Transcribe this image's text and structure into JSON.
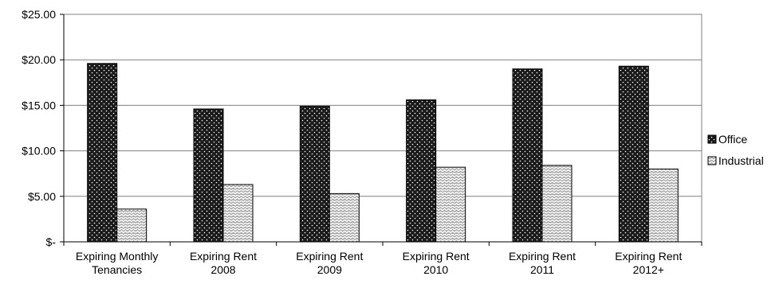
{
  "chart_data": {
    "type": "bar",
    "categories": [
      [
        "Expiring Monthly",
        "Tenancies"
      ],
      [
        "Expiring Rent",
        "2008"
      ],
      [
        "Expiring Rent",
        "2009"
      ],
      [
        "Expiring Rent",
        "2010"
      ],
      [
        "Expiring Rent",
        "2011"
      ],
      [
        "Expiring Rent",
        "2012+"
      ]
    ],
    "series": [
      {
        "name": "Office",
        "values": [
          19.6,
          14.6,
          14.9,
          15.6,
          19.0,
          19.3
        ],
        "pattern": "dotted-black"
      },
      {
        "name": "Industrial",
        "values": [
          3.6,
          6.3,
          5.3,
          8.2,
          8.4,
          8.0
        ],
        "pattern": "zigzag-gray"
      }
    ],
    "yticks": [
      "$-",
      "$5.00",
      "$10.00",
      "$15.00",
      "$20.00",
      "$25.00"
    ],
    "ylim": [
      0,
      25
    ],
    "ystep": 5,
    "grid": true,
    "legend_position": "right",
    "colors": {
      "office_fill": "#1a1a1a",
      "office_dot": "#ffffff",
      "industrial_fill": "#c8c8c8",
      "industrial_line": "#ffffff",
      "grid": "#808080"
    }
  }
}
